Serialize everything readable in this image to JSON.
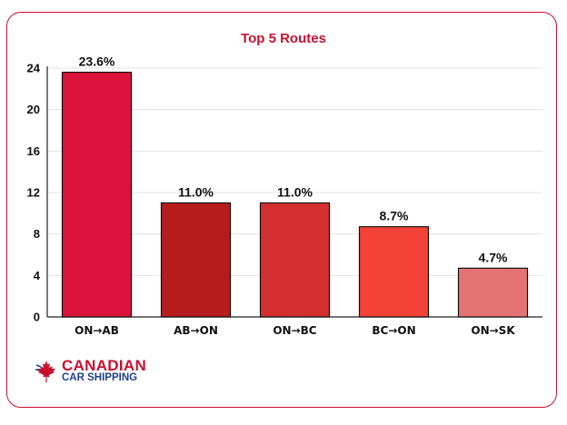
{
  "chart_data": {
    "type": "bar",
    "title": "Top 5 Routes",
    "xlabel": "",
    "ylabel": "",
    "categories": [
      "ON→AB",
      "AB→ON",
      "ON→BC",
      "BC→ON",
      "ON→SK"
    ],
    "values": [
      23.6,
      11.0,
      11.0,
      8.7,
      4.7
    ],
    "data_labels": [
      "23.6%",
      "11.0%",
      "11.0%",
      "8.7%",
      "4.7%"
    ],
    "bar_colors": [
      "#dc143c",
      "#b71c1c",
      "#d32f2f",
      "#f44336",
      "#e57373"
    ],
    "ylim": [
      0,
      24
    ],
    "yticks": [
      0,
      4,
      8,
      12,
      16,
      20,
      24
    ],
    "grid": true,
    "legend": "none"
  },
  "colors": {
    "accent": "#c8102e",
    "brand_blue": "#1f3f8f"
  },
  "logo": {
    "line1": "CANADIAN",
    "line2": "CAR SHIPPING",
    "icon": "maple-leaf-icon"
  }
}
